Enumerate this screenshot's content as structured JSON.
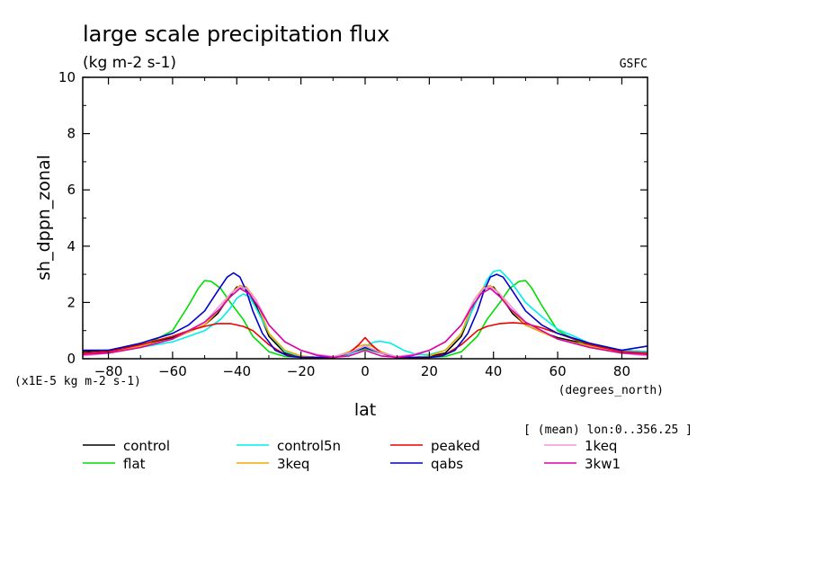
{
  "chart_data": {
    "type": "line",
    "title": "large scale precipitation flux",
    "subtitle": "(kg m-2 s-1)",
    "source": "GSFC",
    "xlabel": "lat",
    "xunits": "(degrees_north)",
    "ylabel": "sh_dppn_zonal",
    "yunits": "(x1E-5 kg m-2 s-1)",
    "footnote": "[ (mean) lon:0..356.25 ]",
    "xlim": [
      -88,
      88
    ],
    "ylim": [
      0,
      10
    ],
    "xticks": [
      -80,
      -60,
      -40,
      -20,
      0,
      20,
      40,
      60,
      80
    ],
    "yticks": [
      0,
      2,
      4,
      6,
      8,
      10
    ],
    "grid": false,
    "legend_position": "bottom",
    "series": [
      {
        "name": "control",
        "color": "#000000",
        "x": [
          -88,
          -80,
          -70,
          -60,
          -55,
          -50,
          -46,
          -43,
          -40,
          -37,
          -34,
          -30,
          -25,
          -20,
          -15,
          -10,
          -5,
          0,
          5,
          10,
          15,
          20,
          25,
          30,
          34,
          37,
          40,
          43,
          46,
          50,
          55,
          60,
          70,
          80,
          88
        ],
        "y": [
          0.25,
          0.3,
          0.5,
          0.75,
          0.95,
          1.2,
          1.6,
          2.1,
          2.55,
          2.5,
          1.9,
          0.8,
          0.2,
          0.08,
          0.05,
          0.05,
          0.2,
          0.45,
          0.2,
          0.05,
          0.05,
          0.08,
          0.2,
          0.8,
          1.9,
          2.5,
          2.55,
          2.1,
          1.6,
          1.2,
          0.95,
          0.75,
          0.5,
          0.3,
          0.25
        ]
      },
      {
        "name": "flat",
        "color": "#00dd00",
        "x": [
          -88,
          -80,
          -70,
          -60,
          -55,
          -52,
          -50,
          -48,
          -45,
          -42,
          -38,
          -35,
          -30,
          -25,
          -20,
          -15,
          -10,
          -5,
          0,
          5,
          10,
          15,
          20,
          25,
          30,
          35,
          38,
          42,
          45,
          48,
          50,
          52,
          55,
          60,
          70,
          80,
          88
        ],
        "y": [
          0.15,
          0.2,
          0.4,
          1.0,
          1.9,
          2.5,
          2.78,
          2.75,
          2.5,
          2.0,
          1.4,
          0.8,
          0.25,
          0.08,
          0.05,
          0.05,
          0.05,
          0.2,
          0.35,
          0.2,
          0.05,
          0.05,
          0.05,
          0.08,
          0.25,
          0.8,
          1.4,
          2.0,
          2.5,
          2.75,
          2.78,
          2.5,
          1.9,
          1.0,
          0.4,
          0.2,
          0.15
        ]
      },
      {
        "name": "control5n",
        "color": "#00eeee",
        "x": [
          -88,
          -80,
          -70,
          -60,
          -50,
          -45,
          -42,
          -40,
          -38,
          -36,
          -34,
          -30,
          -25,
          -20,
          -15,
          -10,
          -5,
          0,
          3,
          5,
          8,
          12,
          16,
          20,
          25,
          30,
          35,
          38,
          40,
          42,
          45,
          50,
          55,
          60,
          70,
          80,
          88
        ],
        "y": [
          0.2,
          0.25,
          0.4,
          0.6,
          1.0,
          1.4,
          1.8,
          2.15,
          2.3,
          2.2,
          1.8,
          0.9,
          0.25,
          0.08,
          0.05,
          0.05,
          0.15,
          0.45,
          0.6,
          0.62,
          0.55,
          0.3,
          0.15,
          0.15,
          0.3,
          0.9,
          2.1,
          2.8,
          3.1,
          3.15,
          2.8,
          2.0,
          1.5,
          1.05,
          0.55,
          0.3,
          0.25
        ]
      },
      {
        "name": "3keq",
        "color": "#eeaa00",
        "x": [
          -88,
          -80,
          -70,
          -60,
          -50,
          -45,
          -42,
          -39,
          -37,
          -34,
          -30,
          -25,
          -20,
          -15,
          -10,
          -5,
          -2,
          0,
          2,
          5,
          10,
          15,
          20,
          25,
          30,
          34,
          37,
          39,
          42,
          45,
          50,
          60,
          70,
          80,
          88
        ],
        "y": [
          0.2,
          0.25,
          0.45,
          0.7,
          1.2,
          1.8,
          2.3,
          2.6,
          2.55,
          2.1,
          0.9,
          0.3,
          0.1,
          0.05,
          0.05,
          0.25,
          0.45,
          0.5,
          0.45,
          0.25,
          0.05,
          0.05,
          0.1,
          0.3,
          0.9,
          2.1,
          2.55,
          2.6,
          2.3,
          1.8,
          1.2,
          0.7,
          0.45,
          0.25,
          0.2
        ]
      },
      {
        "name": "peaked",
        "color": "#ee0000",
        "x": [
          -88,
          -80,
          -70,
          -60,
          -55,
          -50,
          -46,
          -42,
          -38,
          -35,
          -30,
          -25,
          -20,
          -15,
          -10,
          -5,
          -2,
          0,
          2,
          5,
          10,
          15,
          20,
          25,
          30,
          35,
          38,
          42,
          46,
          50,
          55,
          60,
          70,
          80,
          88
        ],
        "y": [
          0.2,
          0.25,
          0.5,
          0.8,
          1.0,
          1.15,
          1.25,
          1.25,
          1.15,
          1.0,
          0.5,
          0.15,
          0.05,
          0.02,
          0.02,
          0.2,
          0.5,
          0.75,
          0.5,
          0.2,
          0.02,
          0.02,
          0.05,
          0.15,
          0.5,
          1.0,
          1.15,
          1.25,
          1.28,
          1.25,
          1.1,
          0.9,
          0.5,
          0.25,
          0.2
        ]
      },
      {
        "name": "qabs",
        "color": "#0000cc",
        "x": [
          -88,
          -80,
          -70,
          -60,
          -55,
          -50,
          -46,
          -43,
          -41,
          -39,
          -37,
          -35,
          -32,
          -28,
          -24,
          -20,
          -15,
          -10,
          -5,
          0,
          5,
          10,
          15,
          20,
          24,
          28,
          32,
          35,
          37,
          39,
          41,
          43,
          46,
          50,
          55,
          60,
          70,
          80,
          88
        ],
        "y": [
          0.3,
          0.3,
          0.55,
          0.9,
          1.2,
          1.7,
          2.4,
          2.9,
          3.05,
          2.9,
          2.4,
          1.7,
          0.9,
          0.3,
          0.1,
          0.05,
          0.05,
          0.05,
          0.2,
          0.4,
          0.2,
          0.05,
          0.05,
          0.05,
          0.1,
          0.3,
          0.9,
          1.7,
          2.4,
          2.9,
          3.0,
          2.9,
          2.4,
          1.7,
          1.2,
          0.9,
          0.55,
          0.3,
          0.45
        ]
      },
      {
        "name": "1keq",
        "color": "#ee99dd",
        "x": [
          -88,
          -80,
          -70,
          -60,
          -55,
          -50,
          -46,
          -42,
          -39,
          -37,
          -34,
          -30,
          -25,
          -20,
          -15,
          -10,
          -5,
          0,
          5,
          10,
          15,
          20,
          25,
          30,
          34,
          37,
          39,
          42,
          46,
          50,
          55,
          60,
          70,
          80,
          88
        ],
        "y": [
          0.1,
          0.2,
          0.4,
          0.7,
          1.0,
          1.3,
          1.8,
          2.3,
          2.55,
          2.5,
          2.1,
          1.2,
          0.6,
          0.3,
          0.15,
          0.08,
          0.2,
          0.45,
          0.2,
          0.08,
          0.15,
          0.3,
          0.6,
          1.2,
          2.1,
          2.5,
          2.55,
          2.3,
          1.8,
          1.3,
          1.0,
          0.7,
          0.4,
          0.2,
          0.1
        ]
      },
      {
        "name": "3kw1",
        "color": "#dd00aa",
        "x": [
          -88,
          -80,
          -70,
          -60,
          -55,
          -50,
          -45,
          -42,
          -39,
          -36,
          -33,
          -30,
          -25,
          -20,
          -15,
          -10,
          -5,
          0,
          5,
          10,
          15,
          20,
          25,
          30,
          33,
          36,
          39,
          42,
          45,
          50,
          55,
          60,
          70,
          80,
          88
        ],
        "y": [
          0.15,
          0.2,
          0.4,
          0.7,
          1.0,
          1.3,
          1.8,
          2.2,
          2.5,
          2.3,
          1.8,
          1.2,
          0.6,
          0.3,
          0.12,
          0.05,
          0.1,
          0.3,
          0.1,
          0.05,
          0.12,
          0.3,
          0.6,
          1.2,
          1.8,
          2.3,
          2.5,
          2.2,
          1.8,
          1.3,
          1.0,
          0.7,
          0.4,
          0.2,
          0.15
        ]
      }
    ]
  }
}
